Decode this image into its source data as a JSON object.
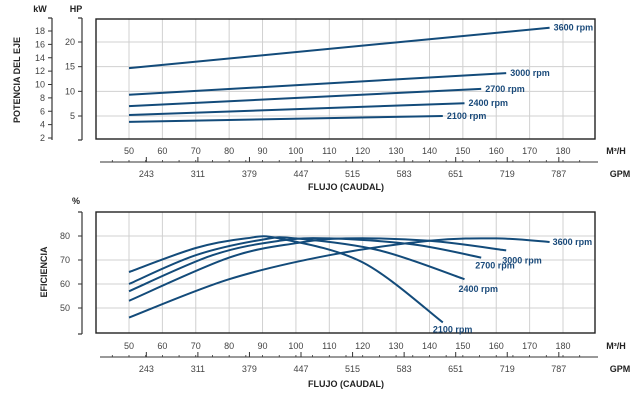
{
  "colors": {
    "curve": "#134b7a",
    "grid": "#d0d0d0",
    "frame": "#222222",
    "label": "#1a4a7a"
  },
  "chart_data": [
    {
      "type": "line",
      "title": "",
      "ylabel": "POTENCIA DEL EJE",
      "xlabel": "FLUJO (CAUDAL)",
      "y_unit_left": "kW",
      "y_unit_right": "HP",
      "x_unit_top": "M³/H",
      "x_unit_bottom": "GPM",
      "xlim": [
        40,
        190
      ],
      "ylim": [
        0,
        25
      ],
      "x_ticks": [
        "50",
        "60",
        "70",
        "80",
        "90",
        "100",
        "110",
        "120",
        "130",
        "140",
        "150",
        "160",
        "170",
        "180"
      ],
      "gpm_ticks": [
        "243",
        "311",
        "379",
        "447",
        "515",
        "583",
        "651",
        "719",
        "787"
      ],
      "hp_ticks": [
        "5",
        "10",
        "15",
        "20"
      ],
      "kw_ticks": [
        "2",
        "4",
        "6",
        "8",
        "10",
        "12",
        "14",
        "16",
        "18"
      ],
      "grid": true,
      "series": [
        {
          "name": "3600 rpm",
          "x": [
            50,
            176
          ],
          "y": [
            14.7,
            22.9
          ]
        },
        {
          "name": "3000 rpm",
          "x": [
            50,
            163
          ],
          "y": [
            9.3,
            13.7
          ]
        },
        {
          "name": "2700 rpm",
          "x": [
            50,
            155.5
          ],
          "y": [
            7.0,
            10.5
          ]
        },
        {
          "name": "2400 rpm",
          "x": [
            50,
            150.5
          ],
          "y": [
            5.2,
            7.6
          ]
        },
        {
          "name": "2100 rpm",
          "x": [
            50,
            144
          ],
          "y": [
            3.8,
            5.0
          ]
        }
      ]
    },
    {
      "type": "line",
      "title": "",
      "ylabel": "EFICIENCIA",
      "xlabel": "FLUJO (CAUDAL)",
      "y_unit_left": "%",
      "x_unit_top": "M³/H",
      "x_unit_bottom": "GPM",
      "xlim": [
        40,
        190
      ],
      "ylim": [
        40,
        90
      ],
      "x_ticks": [
        "50",
        "60",
        "70",
        "80",
        "90",
        "100",
        "110",
        "120",
        "130",
        "140",
        "150",
        "160",
        "170",
        "180"
      ],
      "gpm_ticks": [
        "243",
        "311",
        "379",
        "447",
        "515",
        "583",
        "651",
        "719",
        "787"
      ],
      "y_ticks": [
        "50",
        "60",
        "70",
        "80"
      ],
      "grid": true,
      "series": [
        {
          "name": "3600 rpm",
          "x": [
            50,
            80,
            110,
            140,
            160,
            176
          ],
          "y": [
            46,
            62,
            72,
            78,
            79,
            77.5
          ]
        },
        {
          "name": "3000 rpm",
          "x": [
            50,
            80,
            100,
            115,
            140,
            163
          ],
          "y": [
            53,
            71,
            77,
            79,
            78,
            74
          ]
        },
        {
          "name": "2700 rpm",
          "x": [
            50,
            75,
            95,
            110,
            135,
            155.5
          ],
          "y": [
            57,
            72,
            78,
            79,
            76.5,
            71
          ]
        },
        {
          "name": "2400 rpm",
          "x": [
            50,
            70,
            90,
            100,
            125,
            150.5
          ],
          "y": [
            60,
            72,
            78.5,
            79,
            74,
            62
          ]
        },
        {
          "name": "2100 rpm",
          "x": [
            50,
            70,
            85,
            95,
            120,
            144
          ],
          "y": [
            65,
            75,
            79,
            79,
            69,
            44
          ]
        }
      ]
    }
  ]
}
